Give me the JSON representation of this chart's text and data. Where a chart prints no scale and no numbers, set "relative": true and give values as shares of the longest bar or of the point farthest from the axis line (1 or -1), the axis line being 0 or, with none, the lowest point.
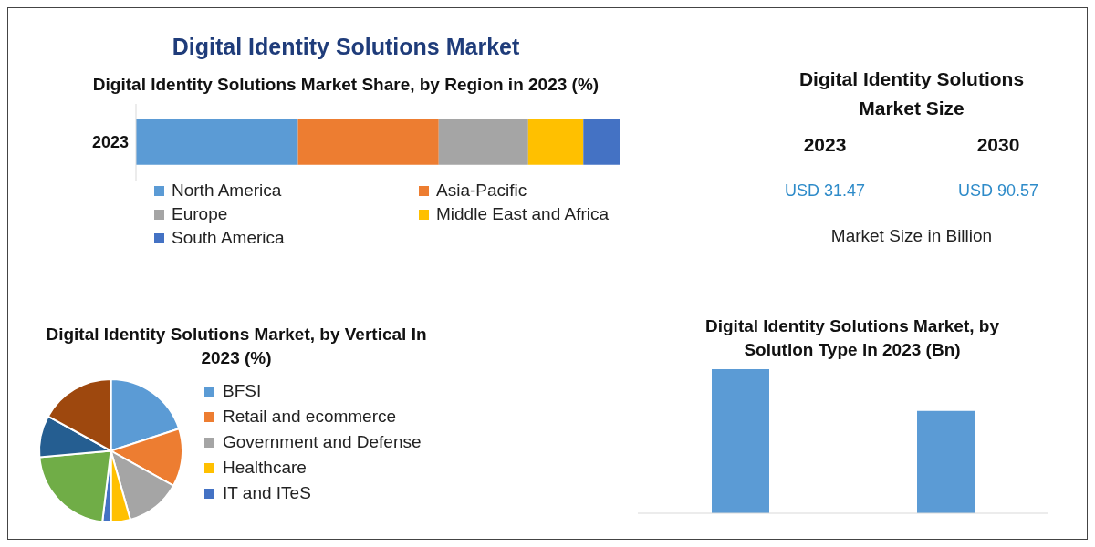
{
  "chart_data": [
    {
      "type": "bar",
      "orientation": "horizontal",
      "stacked": true,
      "relative": true,
      "title": "Digital Identity Solutions Market Share, by Region in 2023 (%)",
      "annotations": [
        "Digital Identity Solutions Market"
      ],
      "categories": [
        "2023"
      ],
      "legend": "bottom",
      "series": [
        {
          "name": "North America",
          "color": "#5b9bd5",
          "values": [
            0.335
          ]
        },
        {
          "name": "Asia-Pacific",
          "color": "#ed7d31",
          "values": [
            0.291
          ]
        },
        {
          "name": "Europe",
          "color": "#a5a5a5",
          "values": [
            0.185
          ]
        },
        {
          "name": "Middle East and Africa",
          "color": "#ffc000",
          "values": [
            0.114
          ]
        },
        {
          "name": "South America",
          "color": "#4472c4",
          "values": [
            0.075
          ]
        }
      ]
    },
    {
      "type": "other",
      "title": "Digital Identity Solutions Market Size",
      "categories": [
        "2023",
        "2030"
      ],
      "value_labels": [
        "USD 31.47",
        "USD 90.57"
      ],
      "color": "#2e8bc9",
      "annotations": [
        "Market Size in Billion"
      ]
    },
    {
      "type": "pie",
      "title": "Digital Identity Solutions Market, by Vertical In 2023 (%)",
      "legend": "right",
      "categories": [
        "BFSI",
        "Retail and ecommerce",
        "Government and Defense",
        "Healthcare",
        "IT and ITeS",
        null,
        null,
        null
      ],
      "values": [
        20.0,
        13.1,
        12.5,
        4.4,
        1.9,
        21.7,
        9.4,
        17.0
      ],
      "colors": [
        "#5b9bd5",
        "#ed7d31",
        "#a5a5a5",
        "#ffc000",
        "#4472c4",
        "#70ad47",
        "#255e91",
        "#9e480e"
      ]
    },
    {
      "type": "bar",
      "relative": true,
      "title": "Digital Identity Solutions Market, by Solution Type in 2023 (Bn)",
      "categories": [
        null,
        null
      ],
      "values": [
        1,
        0.71
      ],
      "color": "#5b9bd5"
    }
  ]
}
